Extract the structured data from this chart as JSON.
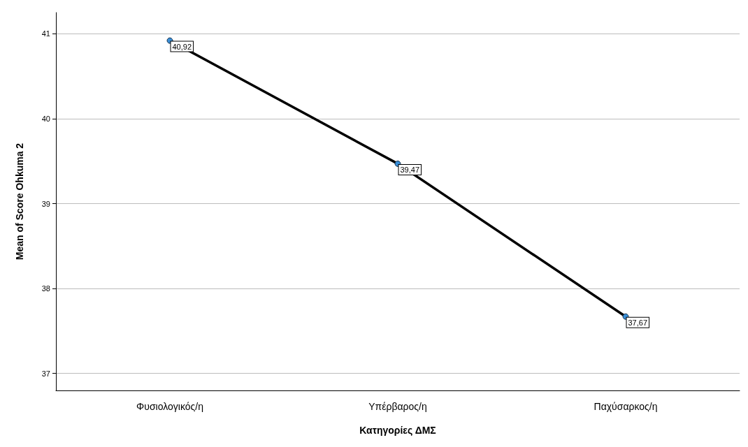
{
  "chart_data": {
    "type": "line",
    "xlabel": "Κατηγορίες ΔΜΣ",
    "ylabel": "Mean of Score Ohkuma 2",
    "categories": [
      "Φυσιολογικός/η",
      "Υπέρβαρος/η",
      "Παχύσαρκος/η"
    ],
    "series": [
      {
        "color": "#000000",
        "values": [
          40.92,
          39.47,
          37.67
        ],
        "value_labels": [
          "40,92",
          "39,47",
          "37,67"
        ]
      }
    ],
    "ylim": [
      36.8,
      41.25
    ],
    "yticks": [
      37,
      38,
      39,
      40,
      41
    ],
    "grid": "y",
    "marker": "circle",
    "line_style": "solid"
  }
}
